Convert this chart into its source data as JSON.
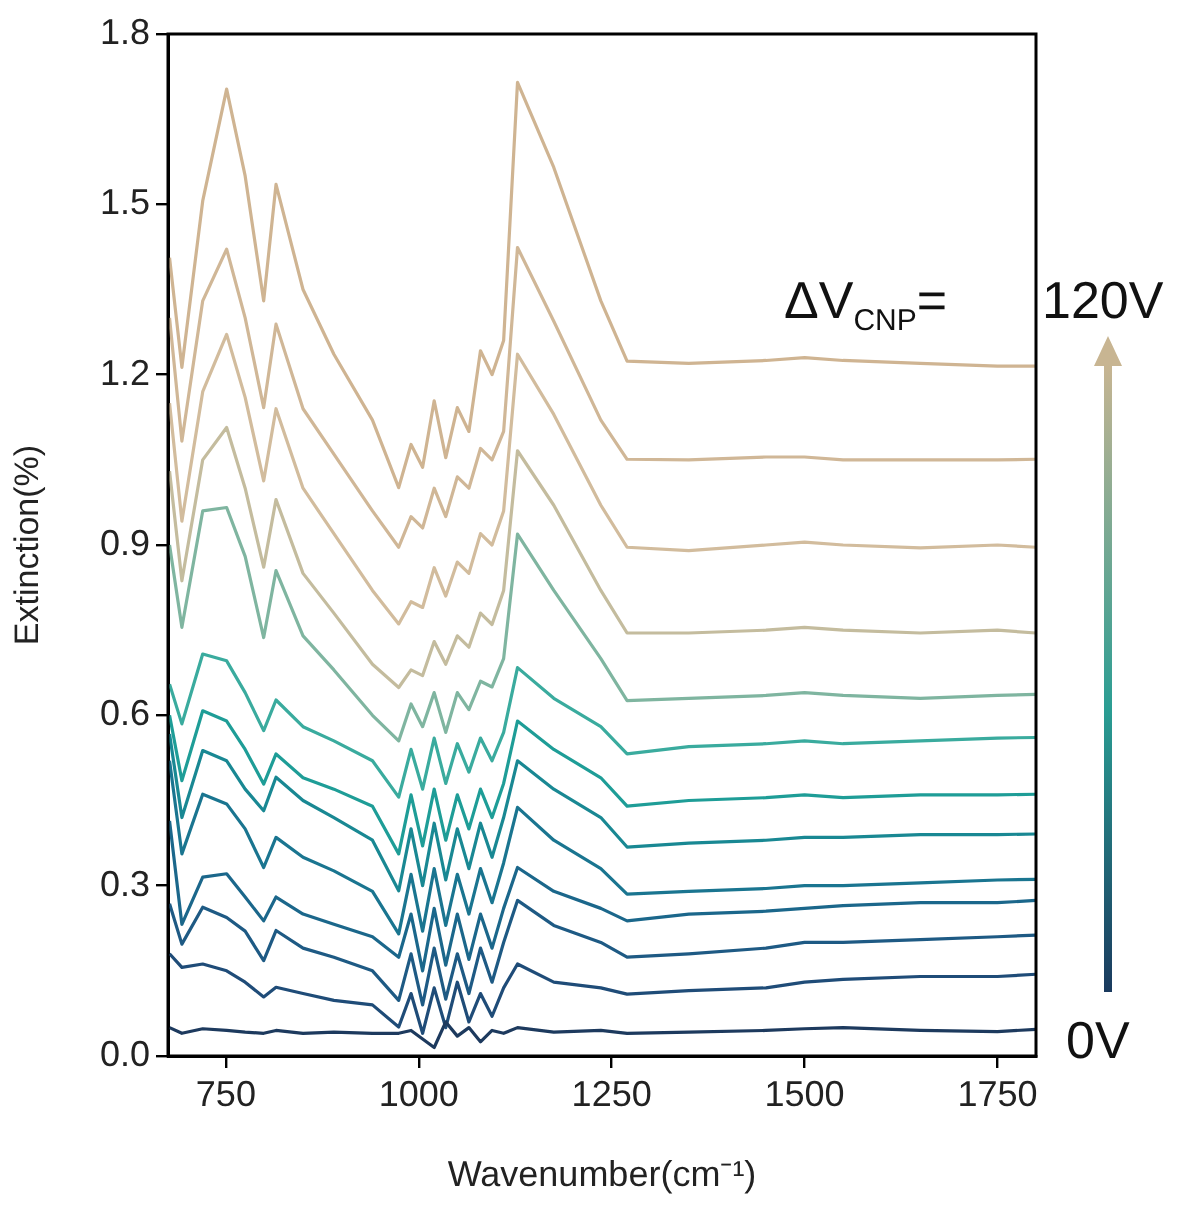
{
  "chart_data": {
    "type": "line",
    "xlabel": "Wavenumber(cm⁻¹)",
    "ylabel": "Extinction(%)",
    "x": [
      677,
      693,
      720,
      751,
      775,
      799,
      815,
      850,
      890,
      940,
      974,
      990,
      1005,
      1020,
      1035,
      1050,
      1065,
      1080,
      1095,
      1110,
      1128,
      1175,
      1236,
      1270,
      1350,
      1450,
      1500,
      1550,
      1650,
      1750,
      1800
    ],
    "xlim": [
      675,
      1800
    ],
    "xticks": [
      750,
      1000,
      1250,
      1500,
      1750
    ],
    "ylim": [
      0,
      1.8
    ],
    "yticks": [
      {
        "value": 0,
        "label": "0.0"
      },
      0.3,
      0.6,
      0.9,
      1.2,
      1.5,
      1.8
    ],
    "grid": false,
    "legend": false,
    "marker": "none",
    "line_style": "solid",
    "annotations": [
      "ΔV$_{CNP}$=",
      "120V",
      "0V"
    ],
    "series": [
      {
        "color": "#1d3a5e",
        "values": [
          0.05,
          0.04,
          0.048,
          0.045,
          0.042,
          0.04,
          0.045,
          0.04,
          0.042,
          0.04,
          0.04,
          0.045,
          0.03,
          0.015,
          0.06,
          0.035,
          0.05,
          0.025,
          0.045,
          0.04,
          0.05,
          0.042,
          0.045,
          0.04,
          0.042,
          0.045,
          0.048,
          0.05,
          0.045,
          0.043,
          0.047
        ]
      },
      {
        "color": "#1f4c78",
        "values": [
          0.18,
          0.156,
          0.162,
          0.15,
          0.13,
          0.104,
          0.121,
          0.11,
          0.098,
          0.09,
          0.051,
          0.11,
          0.04,
          0.12,
          0.05,
          0.13,
          0.06,
          0.11,
          0.07,
          0.12,
          0.162,
          0.13,
          0.12,
          0.109,
          0.115,
          0.12,
          0.13,
          0.135,
          0.14,
          0.14,
          0.144
        ]
      },
      {
        "color": "#1e5a84",
        "values": [
          0.268,
          0.197,
          0.262,
          0.244,
          0.22,
          0.168,
          0.221,
          0.19,
          0.174,
          0.15,
          0.098,
          0.18,
          0.09,
          0.19,
          0.1,
          0.18,
          0.11,
          0.19,
          0.13,
          0.2,
          0.274,
          0.23,
          0.2,
          0.174,
          0.18,
          0.19,
          0.2,
          0.2,
          0.205,
          0.21,
          0.213
        ]
      },
      {
        "color": "#1b678b",
        "values": [
          0.414,
          0.232,
          0.315,
          0.321,
          0.28,
          0.238,
          0.28,
          0.25,
          0.232,
          0.21,
          0.174,
          0.25,
          0.15,
          0.26,
          0.16,
          0.25,
          0.17,
          0.25,
          0.19,
          0.26,
          0.332,
          0.29,
          0.26,
          0.238,
          0.25,
          0.255,
          0.26,
          0.265,
          0.27,
          0.27,
          0.274
        ]
      },
      {
        "color": "#1a7590",
        "values": [
          0.52,
          0.356,
          0.461,
          0.444,
          0.4,
          0.332,
          0.385,
          0.35,
          0.326,
          0.29,
          0.215,
          0.32,
          0.22,
          0.33,
          0.23,
          0.32,
          0.25,
          0.33,
          0.27,
          0.34,
          0.438,
          0.38,
          0.33,
          0.285,
          0.29,
          0.295,
          0.3,
          0.3,
          0.305,
          0.31,
          0.311
        ]
      },
      {
        "color": "#198893",
        "values": [
          0.567,
          0.42,
          0.538,
          0.52,
          0.47,
          0.432,
          0.491,
          0.45,
          0.42,
          0.38,
          0.291,
          0.4,
          0.3,
          0.41,
          0.31,
          0.4,
          0.33,
          0.41,
          0.35,
          0.42,
          0.52,
          0.47,
          0.42,
          0.368,
          0.375,
          0.38,
          0.385,
          0.385,
          0.39,
          0.39,
          0.391
        ]
      },
      {
        "color": "#1e9d97",
        "values": [
          0.6,
          0.485,
          0.608,
          0.59,
          0.54,
          0.479,
          0.532,
          0.49,
          0.47,
          0.44,
          0.356,
          0.46,
          0.37,
          0.47,
          0.38,
          0.46,
          0.4,
          0.47,
          0.42,
          0.48,
          0.59,
          0.54,
          0.49,
          0.44,
          0.45,
          0.455,
          0.46,
          0.455,
          0.46,
          0.46,
          0.461
        ]
      },
      {
        "color": "#3aab9e",
        "values": [
          0.655,
          0.585,
          0.708,
          0.696,
          0.64,
          0.573,
          0.627,
          0.58,
          0.555,
          0.52,
          0.456,
          0.54,
          0.47,
          0.56,
          0.48,
          0.55,
          0.5,
          0.56,
          0.52,
          0.57,
          0.684,
          0.63,
          0.58,
          0.532,
          0.545,
          0.55,
          0.555,
          0.55,
          0.555,
          0.56,
          0.561
        ]
      },
      {
        "color": "#7fb5a0",
        "values": [
          0.9,
          0.755,
          0.96,
          0.966,
          0.88,
          0.737,
          0.855,
          0.74,
          0.68,
          0.6,
          0.555,
          0.62,
          0.58,
          0.64,
          0.57,
          0.64,
          0.61,
          0.66,
          0.65,
          0.7,
          0.919,
          0.82,
          0.7,
          0.626,
          0.63,
          0.635,
          0.64,
          0.635,
          0.63,
          0.635,
          0.637
        ]
      },
      {
        "color": "#c4bc9e",
        "values": [
          1.03,
          0.837,
          1.05,
          1.107,
          1.0,
          0.861,
          0.98,
          0.85,
          0.78,
          0.69,
          0.649,
          0.68,
          0.67,
          0.73,
          0.69,
          0.74,
          0.72,
          0.78,
          0.76,
          0.82,
          1.066,
          0.97,
          0.82,
          0.745,
          0.745,
          0.75,
          0.755,
          0.75,
          0.745,
          0.75,
          0.745
        ]
      },
      {
        "color": "#d2bc9d",
        "values": [
          1.15,
          0.942,
          1.17,
          1.271,
          1.16,
          1.013,
          1.14,
          1.0,
          0.92,
          0.82,
          0.761,
          0.8,
          0.79,
          0.86,
          0.81,
          0.87,
          0.85,
          0.92,
          0.9,
          0.96,
          1.236,
          1.13,
          0.97,
          0.896,
          0.89,
          0.9,
          0.905,
          0.9,
          0.895,
          0.9,
          0.896
        ]
      },
      {
        "color": "#d0b797",
        "values": [
          1.3,
          1.083,
          1.33,
          1.421,
          1.3,
          1.142,
          1.289,
          1.14,
          1.06,
          0.96,
          0.896,
          0.95,
          0.93,
          1.0,
          0.95,
          1.02,
          1.0,
          1.07,
          1.05,
          1.1,
          1.424,
          1.294,
          1.12,
          1.051,
          1.05,
          1.055,
          1.055,
          1.05,
          1.05,
          1.05,
          1.051
        ]
      },
      {
        "color": "#cfb492",
        "values": [
          1.406,
          1.213,
          1.506,
          1.703,
          1.55,
          1.33,
          1.535,
          1.35,
          1.236,
          1.12,
          1.001,
          1.077,
          1.037,
          1.154,
          1.054,
          1.142,
          1.1,
          1.242,
          1.2,
          1.26,
          1.715,
          1.565,
          1.33,
          1.224,
          1.22,
          1.225,
          1.23,
          1.225,
          1.22,
          1.215,
          1.215
        ]
      }
    ]
  }
}
